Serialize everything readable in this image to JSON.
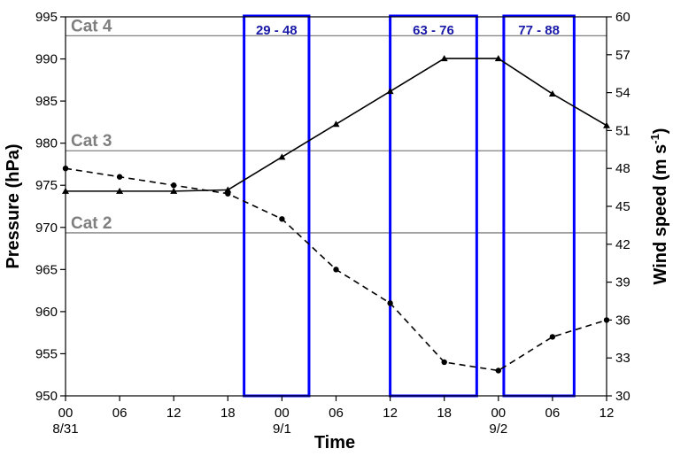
{
  "chart_data": {
    "type": "line",
    "xlabel": "Time",
    "ylabel_left": "Pressure (hPa)",
    "ylabel_right": "Wind speed (m s",
    "ylabel_right_sup": "-1",
    "ylabel_right_close": ")",
    "x_ticks": [
      {
        "label": "00",
        "date": "8/31"
      },
      {
        "label": "06",
        "date": ""
      },
      {
        "label": "12",
        "date": ""
      },
      {
        "label": "18",
        "date": ""
      },
      {
        "label": "00",
        "date": "9/1"
      },
      {
        "label": "06",
        "date": ""
      },
      {
        "label": "12",
        "date": ""
      },
      {
        "label": "18",
        "date": ""
      },
      {
        "label": "00",
        "date": "9/2"
      },
      {
        "label": "06",
        "date": ""
      },
      {
        "label": "12",
        "date": ""
      }
    ],
    "ylim_left": [
      950,
      995
    ],
    "yticks_left": [
      950,
      955,
      960,
      965,
      970,
      975,
      980,
      985,
      990,
      995
    ],
    "ylim_right": [
      30,
      60
    ],
    "yticks_right": [
      30,
      33,
      36,
      39,
      42,
      45,
      48,
      51,
      54,
      57,
      60
    ],
    "series": [
      {
        "style": "dashed",
        "marker": "circle",
        "axis": "left",
        "values": [
          977,
          976,
          975,
          974,
          971,
          965,
          961,
          954,
          953,
          957,
          959
        ]
      },
      {
        "style": "solid",
        "marker": "triangle",
        "axis": "right",
        "values": [
          46.2,
          46.2,
          46.2,
          46.3,
          48.9,
          51.5,
          54.1,
          56.7,
          56.7,
          53.9,
          51.4
        ]
      }
    ],
    "category_lines": [
      {
        "label": "Cat 4",
        "wind": 58.5
      },
      {
        "label": "Cat 3",
        "wind": 49.4
      },
      {
        "label": "Cat 2",
        "wind": 42.9
      }
    ],
    "boxes": [
      {
        "label": "29 - 48",
        "from_index": 3.3,
        "to_index": 4.5
      },
      {
        "label": "63 - 76",
        "from_index": 6.0,
        "to_index": 7.6
      },
      {
        "label": "77 - 88",
        "from_index": 8.1,
        "to_index": 9.4
      }
    ],
    "colors": {
      "series": "#000000",
      "category_line": "#808080",
      "category_text": "#7f7f7f",
      "box": "#0000ff",
      "box_text": "#1a1aa8"
    }
  }
}
